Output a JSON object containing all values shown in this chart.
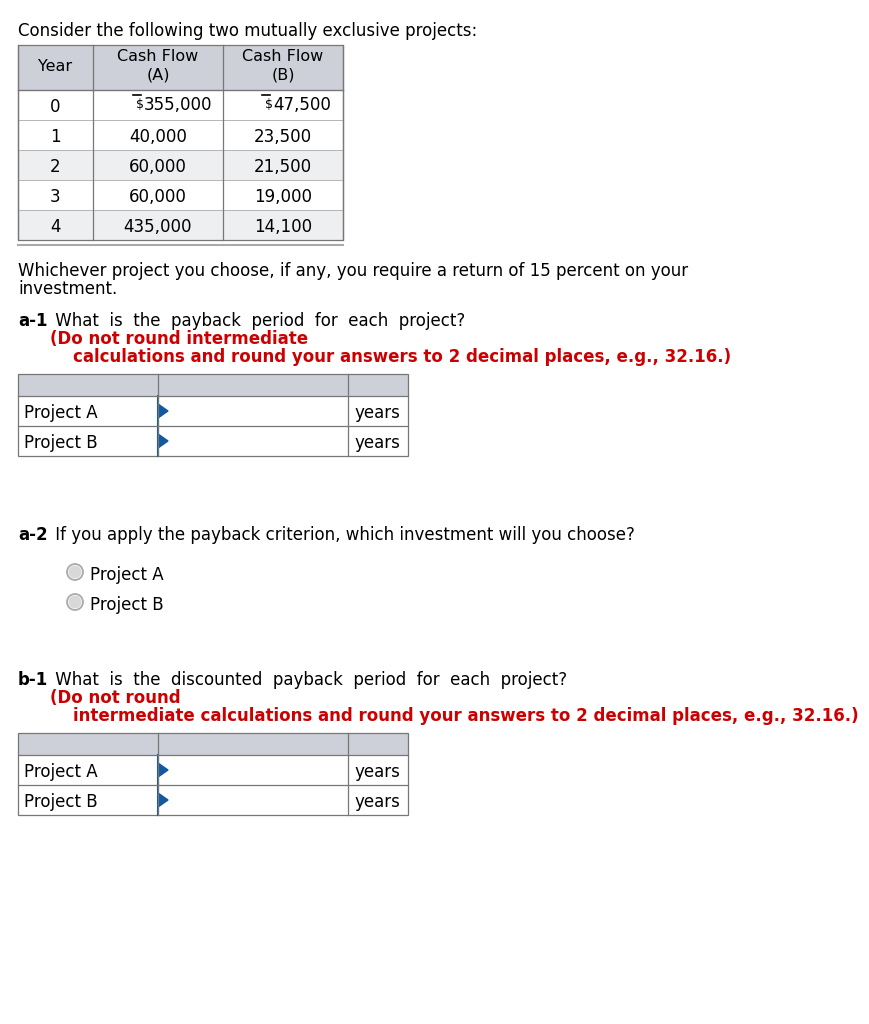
{
  "title_text": "Consider the following two mutually exclusive projects:",
  "col_headers": [
    "Year",
    "Cash Flow\n(A)",
    "Cash Flow\n(B)"
  ],
  "table_rows": [
    [
      "0",
      "$355,000",
      "$47,500"
    ],
    [
      "1",
      "40,000",
      "23,500"
    ],
    [
      "2",
      "60,000",
      "21,500"
    ],
    [
      "3",
      "60,000",
      "19,000"
    ],
    [
      "4",
      "435,000",
      "14,100"
    ]
  ],
  "return_text1": "Whichever project you choose, if any, you require a return of 15 percent on your",
  "return_text2": "investment.",
  "a1_label": "a-1",
  "a1_black": " What  is  the  payback  period  for  each  project?  ",
  "a1_red": "(Do not round intermediate",
  "a1_red2": "    calculations and round your answers to 2 decimal places, e.g., 32.16.)",
  "a1_rows": [
    "Project A",
    "Project B"
  ],
  "a1_unit": "years",
  "a2_label": "a-2",
  "a2_black": " If you apply the payback criterion, which investment will you choose?",
  "radio_opts": [
    "Project A",
    "Project B"
  ],
  "b1_label": "b-1",
  "b1_black": " What  is  the  discounted  payback  period  for  each  project?  ",
  "b1_red": "(Do not round",
  "b1_red2": "    intermediate calculations and round your answers to 2 decimal places, e.g., 32.16.)",
  "b1_rows": [
    "Project A",
    "Project B"
  ],
  "b1_unit": "years",
  "bg": "#ffffff",
  "hdr_bg": "#cdd0d8",
  "row_bg1": "#ffffff",
  "row_bg2": "#eeeff1",
  "inp_hdr_bg": "#cdd0d8",
  "blue": "#1458a0",
  "red": "#cc0000",
  "gray_line": "#aaaaaa",
  "dark_line": "#777777"
}
